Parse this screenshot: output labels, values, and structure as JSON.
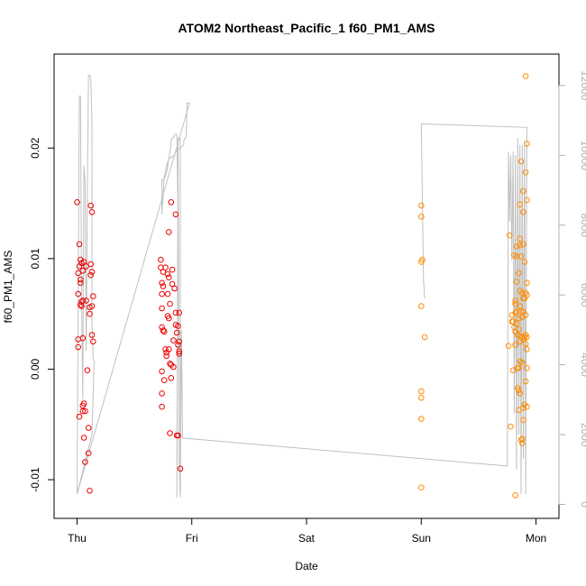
{
  "chart_data": {
    "type": "scatter",
    "title": "ATOM2 Northeast_Pacific_1 f60_PM1_AMS",
    "xlabel": "Date",
    "ylabel": "f60_PM1_AMS",
    "x_ticks": [
      {
        "label": "Thu",
        "value": 0
      },
      {
        "label": "Fri",
        "value": 1
      },
      {
        "label": "Sat",
        "value": 2
      },
      {
        "label": "Sun",
        "value": 3
      },
      {
        "label": "Mon",
        "value": 4
      }
    ],
    "xlim": [
      -0.2,
      4.2
    ],
    "ylim": [
      -0.0135,
      0.0285
    ],
    "y_ticks": [
      {
        "label": "-0.01",
        "value": -0.01
      },
      {
        "label": "0.00",
        "value": 0.0
      },
      {
        "label": "0.01",
        "value": 0.01
      },
      {
        "label": "0.02",
        "value": 0.02
      }
    ],
    "y2lim": [
      -400,
      12900
    ],
    "y2_ticks": [
      {
        "label": "0",
        "value": 0
      },
      {
        "label": "2000",
        "value": 2000
      },
      {
        "label": "4000",
        "value": 4000
      },
      {
        "label": "6000",
        "value": 6000
      },
      {
        "label": "8000",
        "value": 8000
      },
      {
        "label": "10000",
        "value": 10000
      },
      {
        "label": "12000",
        "value": 12000
      }
    ],
    "grid": false,
    "colors": {
      "red": "#ee0000",
      "orange": "#ff8c00",
      "line": "#c0c0c0",
      "axis": "#000000",
      "axis_right": "#b0b0b0"
    },
    "series": [
      {
        "color": "#ee0000",
        "points": [
          [
            0.0,
            0.0151
          ],
          [
            0.01,
            0.0087
          ],
          [
            0.01,
            0.0068
          ],
          [
            0.01,
            0.0027
          ],
          [
            0.01,
            0.002
          ],
          [
            0.02,
            0.0113
          ],
          [
            0.02,
            0.0093
          ],
          [
            0.02,
            -0.0043
          ],
          [
            0.03,
            0.0099
          ],
          [
            0.03,
            0.0081
          ],
          [
            0.03,
            0.0078
          ],
          [
            0.03,
            0.0058
          ],
          [
            0.04,
            0.0096
          ],
          [
            0.04,
            0.0061
          ],
          [
            0.04,
            0.0057
          ],
          [
            0.05,
            0.0089
          ],
          [
            0.05,
            0.0062
          ],
          [
            0.05,
            0.0028
          ],
          [
            0.05,
            -0.0033
          ],
          [
            0.05,
            -0.0038
          ],
          [
            0.06,
            0.0097
          ],
          [
            0.06,
            -0.0031
          ],
          [
            0.06,
            -0.0062
          ],
          [
            0.07,
            -0.0084
          ],
          [
            0.07,
            -0.0038
          ],
          [
            0.08,
            0.0093
          ],
          [
            0.08,
            0.0062
          ],
          [
            0.09,
            -0.0001
          ],
          [
            0.1,
            -0.0076
          ],
          [
            0.1,
            -0.0053
          ],
          [
            0.11,
            0.0056
          ],
          [
            0.11,
            0.005
          ],
          [
            0.11,
            -0.011
          ],
          [
            0.12,
            0.0148
          ],
          [
            0.12,
            0.0095
          ],
          [
            0.12,
            0.0085
          ],
          [
            0.13,
            0.0142
          ],
          [
            0.13,
            0.0088
          ],
          [
            0.13,
            0.0057
          ],
          [
            0.13,
            0.0031
          ],
          [
            0.14,
            0.0025
          ],
          [
            0.14,
            0.0066
          ],
          [
            0.73,
            0.0099
          ],
          [
            0.73,
            0.0092
          ],
          [
            0.74,
            0.0078
          ],
          [
            0.74,
            0.0068
          ],
          [
            0.74,
            0.0055
          ],
          [
            0.74,
            0.0038
          ],
          [
            0.74,
            -0.0002
          ],
          [
            0.74,
            -0.0022
          ],
          [
            0.74,
            -0.0034
          ],
          [
            0.75,
            0.0088
          ],
          [
            0.75,
            0.0075
          ],
          [
            0.75,
            0.0035
          ],
          [
            0.76,
            0.0034
          ],
          [
            0.76,
            -0.001
          ],
          [
            0.77,
            0.0092
          ],
          [
            0.77,
            0.0018
          ],
          [
            0.78,
            0.0015
          ],
          [
            0.78,
            0.0012
          ],
          [
            0.79,
            0.0086
          ],
          [
            0.79,
            0.0068
          ],
          [
            0.79,
            0.0048
          ],
          [
            0.8,
            0.0124
          ],
          [
            0.8,
            0.0083
          ],
          [
            0.8,
            0.0046
          ],
          [
            0.8,
            0.0018
          ],
          [
            0.81,
            0.0059
          ],
          [
            0.81,
            0.0005
          ],
          [
            0.81,
            -0.0058
          ],
          [
            0.82,
            0.0151
          ],
          [
            0.82,
            0.0004
          ],
          [
            0.82,
            -0.0008
          ],
          [
            0.83,
            0.009
          ],
          [
            0.83,
            0.0077
          ],
          [
            0.84,
            0.0026
          ],
          [
            0.84,
            0.0002
          ],
          [
            0.85,
            0.0073
          ],
          [
            0.86,
            0.014
          ],
          [
            0.86,
            0.0051
          ],
          [
            0.86,
            0.004
          ],
          [
            0.87,
            0.0033
          ],
          [
            0.87,
            -0.006
          ],
          [
            0.88,
            0.0039
          ],
          [
            0.88,
            0.0022
          ],
          [
            0.88,
            -0.006
          ],
          [
            0.89,
            0.0051
          ],
          [
            0.89,
            0.0025
          ],
          [
            0.89,
            0.0016
          ],
          [
            0.89,
            0.0014
          ],
          [
            0.9,
            -0.009
          ]
        ]
      },
      {
        "color": "#ff8c00",
        "points": [
          [
            3.0,
            0.0148
          ],
          [
            3.0,
            0.0138
          ],
          [
            3.0,
            0.0097
          ],
          [
            3.0,
            0.0057
          ],
          [
            3.0,
            -0.002
          ],
          [
            3.0,
            -0.0026
          ],
          [
            3.0,
            -0.0045
          ],
          [
            3.0,
            -0.0107
          ],
          [
            3.01,
            0.0099
          ],
          [
            3.03,
            0.0029
          ],
          [
            3.76,
            0.0021
          ],
          [
            3.77,
            0.0121
          ],
          [
            3.78,
            -0.0052
          ],
          [
            3.79,
            0.0049
          ],
          [
            3.79,
            0.0043
          ],
          [
            3.8,
            0.0043
          ],
          [
            3.8,
            -0.0001
          ],
          [
            3.81,
            0.0103
          ],
          [
            3.81,
            0.0038
          ],
          [
            3.82,
            0.0062
          ],
          [
            3.82,
            0.0059
          ],
          [
            3.82,
            0.0051
          ],
          [
            3.82,
            0.0034
          ],
          [
            3.82,
            0.0022
          ],
          [
            3.82,
            -0.0114
          ],
          [
            3.83,
            0.0111
          ],
          [
            3.83,
            0.0102
          ],
          [
            3.83,
            0.0079
          ],
          [
            3.83,
            0.0052
          ],
          [
            3.83,
            0.0041
          ],
          [
            3.84,
            0.0031
          ],
          [
            3.84,
            0.0001
          ],
          [
            3.84,
            -0.0017
          ],
          [
            3.85,
            0.0087
          ],
          [
            3.85,
            0.0046
          ],
          [
            3.85,
            0.0036
          ],
          [
            3.85,
            0.0001
          ],
          [
            3.85,
            -0.0019
          ],
          [
            3.85,
            -0.0037
          ],
          [
            3.86,
            0.0149
          ],
          [
            3.86,
            0.0118
          ],
          [
            3.86,
            0.0112
          ],
          [
            3.86,
            0.0071
          ],
          [
            3.86,
            0.0057
          ],
          [
            3.86,
            0.003
          ],
          [
            3.86,
            0.0025
          ],
          [
            3.86,
            0.0007
          ],
          [
            3.86,
            -0.0022
          ],
          [
            3.87,
            0.0188
          ],
          [
            3.87,
            0.0102
          ],
          [
            3.87,
            0.0052
          ],
          [
            3.87,
            -0.0064
          ],
          [
            3.88,
            0.0069
          ],
          [
            3.88,
            0.0047
          ],
          [
            3.88,
            0.0029
          ],
          [
            3.88,
            0.0006
          ],
          [
            3.88,
            -0.0063
          ],
          [
            3.88,
            -0.0067
          ],
          [
            3.89,
            0.0161
          ],
          [
            3.89,
            0.0142
          ],
          [
            3.89,
            0.0113
          ],
          [
            3.89,
            0.0064
          ],
          [
            3.89,
            0.0052
          ],
          [
            3.89,
            0.0027
          ],
          [
            3.89,
            -0.0035
          ],
          [
            3.89,
            -0.0046
          ],
          [
            3.9,
            0.0097
          ],
          [
            3.9,
            0.0064
          ],
          [
            3.9,
            0.0029
          ],
          [
            3.9,
            -0.0032
          ],
          [
            3.91,
            0.0265
          ],
          [
            3.91,
            0.0178
          ],
          [
            3.91,
            0.0069
          ],
          [
            3.91,
            0.0049
          ],
          [
            3.91,
            0.0031
          ],
          [
            3.91,
            0.0023
          ],
          [
            3.91,
            -0.0011
          ],
          [
            3.92,
            0.0204
          ],
          [
            3.92,
            0.0153
          ],
          [
            3.92,
            0.0078
          ],
          [
            3.92,
            0.0067
          ],
          [
            3.92,
            0.0029
          ],
          [
            3.92,
            0.0018
          ],
          [
            3.92,
            0.0001
          ],
          [
            3.92,
            -0.0034
          ]
        ]
      }
    ],
    "line_series": [
      {
        "color": "#c0c0c0",
        "axis": "right",
        "points": [
          [
            0.0,
            300
          ],
          [
            0.02,
            11700
          ],
          [
            0.03,
            11700
          ],
          [
            0.04,
            6000
          ],
          [
            0.05,
            3000
          ],
          [
            0.06,
            9700
          ],
          [
            0.07,
            9200
          ],
          [
            0.08,
            4400
          ],
          [
            0.09,
            9000
          ],
          [
            0.1,
            12300
          ],
          [
            0.11,
            12300
          ],
          [
            0.12,
            12200
          ],
          [
            0.13,
            11000
          ],
          [
            0.13,
            5200
          ],
          [
            0.14,
            4200
          ],
          [
            0.15,
            4100
          ],
          [
            0.13,
            2000
          ],
          [
            0.0,
            300
          ],
          [
            0.98,
            11500
          ],
          [
            0.96,
            11500
          ],
          [
            0.95,
            10500
          ],
          [
            0.94,
            10500
          ],
          [
            0.93,
            10400
          ],
          [
            0.93,
            10300
          ],
          [
            0.86,
            10100
          ],
          [
            0.85,
            10000
          ],
          [
            0.8,
            9900
          ],
          [
            0.78,
            9700
          ],
          [
            0.77,
            9500
          ],
          [
            0.76,
            9400
          ],
          [
            0.74,
            8300
          ],
          [
            0.74,
            9300
          ],
          [
            0.75,
            9300
          ],
          [
            0.77,
            9400
          ],
          [
            0.78,
            9500
          ],
          [
            0.79,
            9700
          ],
          [
            0.8,
            9900
          ],
          [
            0.81,
            10100
          ],
          [
            0.82,
            10400
          ],
          [
            0.83,
            10500
          ],
          [
            0.84,
            10500
          ],
          [
            0.85,
            10600
          ],
          [
            0.86,
            10600
          ],
          [
            0.87,
            10600
          ],
          [
            0.88,
            8300
          ],
          [
            0.87,
            1100
          ],
          [
            0.87,
            200
          ],
          [
            0.88,
            10500
          ],
          [
            0.89,
            1300
          ],
          [
            0.9,
            200
          ],
          [
            0.9,
            10500
          ],
          [
            0.9,
            1200
          ],
          [
            0.9,
            200
          ],
          [
            0.91,
            5000
          ],
          [
            0.92,
            1900
          ],
          [
            0.92,
            1900
          ],
          [
            3.75,
            1100
          ],
          [
            3.75,
            1100
          ],
          [
            3.76,
            10100
          ],
          [
            3.77,
            8100
          ],
          [
            3.78,
            10000
          ],
          [
            3.79,
            7000
          ],
          [
            3.8,
            10100
          ],
          [
            3.81,
            2600
          ],
          [
            3.82,
            10000
          ],
          [
            3.83,
            1000
          ],
          [
            3.84,
            10500
          ],
          [
            3.85,
            2000
          ],
          [
            3.86,
            10300
          ],
          [
            3.87,
            300
          ],
          [
            3.88,
            10300
          ],
          [
            3.89,
            1300
          ],
          [
            3.9,
            10400
          ],
          [
            3.91,
            300
          ],
          [
            3.92,
            10800
          ],
          [
            3.92,
            10800
          ],
          [
            3.0,
            10900
          ],
          [
            3.0,
            10900
          ],
          [
            3.02,
            6400
          ],
          [
            3.03,
            5900
          ]
        ]
      }
    ]
  }
}
